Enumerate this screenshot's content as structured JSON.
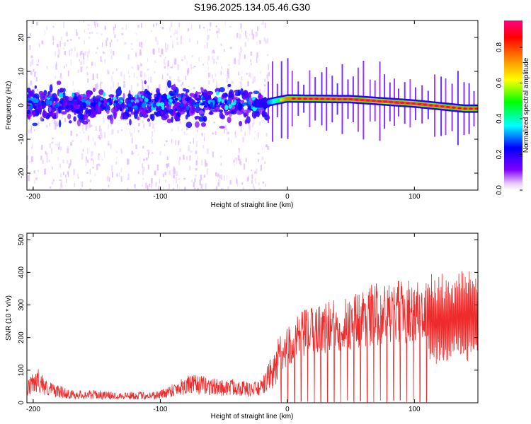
{
  "figure": {
    "title": "S196.2025.134.05.46.G30"
  },
  "chart_data": [
    {
      "type": "heatmap",
      "title": "S196.2025.134.05.46.G30",
      "xlabel": "Height of straight line (km)",
      "ylabel": "Frequency (Hz)",
      "xlim": [
        -205,
        150
      ],
      "ylim": [
        -25,
        25
      ],
      "xticks": [
        -200,
        -100,
        0,
        100
      ],
      "yticks": [
        -20,
        -10,
        0,
        10,
        20
      ],
      "grid": false,
      "colorbar": {
        "label": "Normalized spectral amplitude",
        "range": [
          0,
          0.95
        ],
        "ticks": [
          "0.0",
          "0.2",
          "0.4",
          "0.6",
          "0.8"
        ],
        "colors": [
          "#ffffff",
          "#8000ff",
          "#0000ff",
          "#00ffff",
          "#00ff00",
          "#ffff00",
          "#ff8000",
          "#ff0000",
          "#ff0080"
        ]
      },
      "ridge": {
        "description_points": [
          {
            "x": -200,
            "freq": 1.5,
            "amp": 0.35
          },
          {
            "x": -150,
            "freq": 1.0,
            "amp": 0.3
          },
          {
            "x": -100,
            "freq": 0.5,
            "amp": 0.35
          },
          {
            "x": -50,
            "freq": 1.0,
            "amp": 0.35
          },
          {
            "x": -20,
            "freq": 0.5,
            "amp": 0.4
          },
          {
            "x": 0,
            "freq": 2.0,
            "amp": 0.9
          },
          {
            "x": 50,
            "freq": 1.8,
            "amp": 0.95
          },
          {
            "x": 100,
            "freq": 0.5,
            "amp": 0.95
          },
          {
            "x": 140,
            "freq": -1.0,
            "amp": 0.9
          }
        ]
      }
    },
    {
      "type": "line",
      "xlabel": "Height of straight line (km)",
      "ylabel": "SNR (10 * v/v)",
      "xlim": [
        -205,
        150
      ],
      "ylim": [
        0,
        520
      ],
      "xticks": [
        -200,
        -100,
        0,
        100
      ],
      "yticks": [
        0,
        100,
        200,
        300,
        400,
        500
      ],
      "grid": false,
      "color": "#ee2c2c",
      "series": [
        {
          "x": [
            -205,
            -200,
            -195,
            -190,
            -180,
            -170,
            -160,
            -150,
            -140,
            -130,
            -120,
            -110,
            -100,
            -90,
            -80,
            -70,
            -60,
            -50,
            -40,
            -30,
            -20,
            -15,
            -10,
            -5,
            0,
            5,
            10,
            20,
            30,
            40,
            50,
            60,
            70,
            80,
            90,
            100,
            110,
            120,
            130,
            140,
            150
          ],
          "values": [
            40,
            60,
            70,
            45,
            35,
            25,
            25,
            25,
            22,
            22,
            22,
            22,
            25,
            40,
            55,
            55,
            50,
            45,
            50,
            40,
            45,
            80,
            100,
            150,
            200,
            220,
            240,
            260,
            270,
            280,
            290,
            310,
            320,
            320,
            330,
            330,
            330,
            320,
            320,
            330,
            330
          ]
        }
      ]
    }
  ]
}
